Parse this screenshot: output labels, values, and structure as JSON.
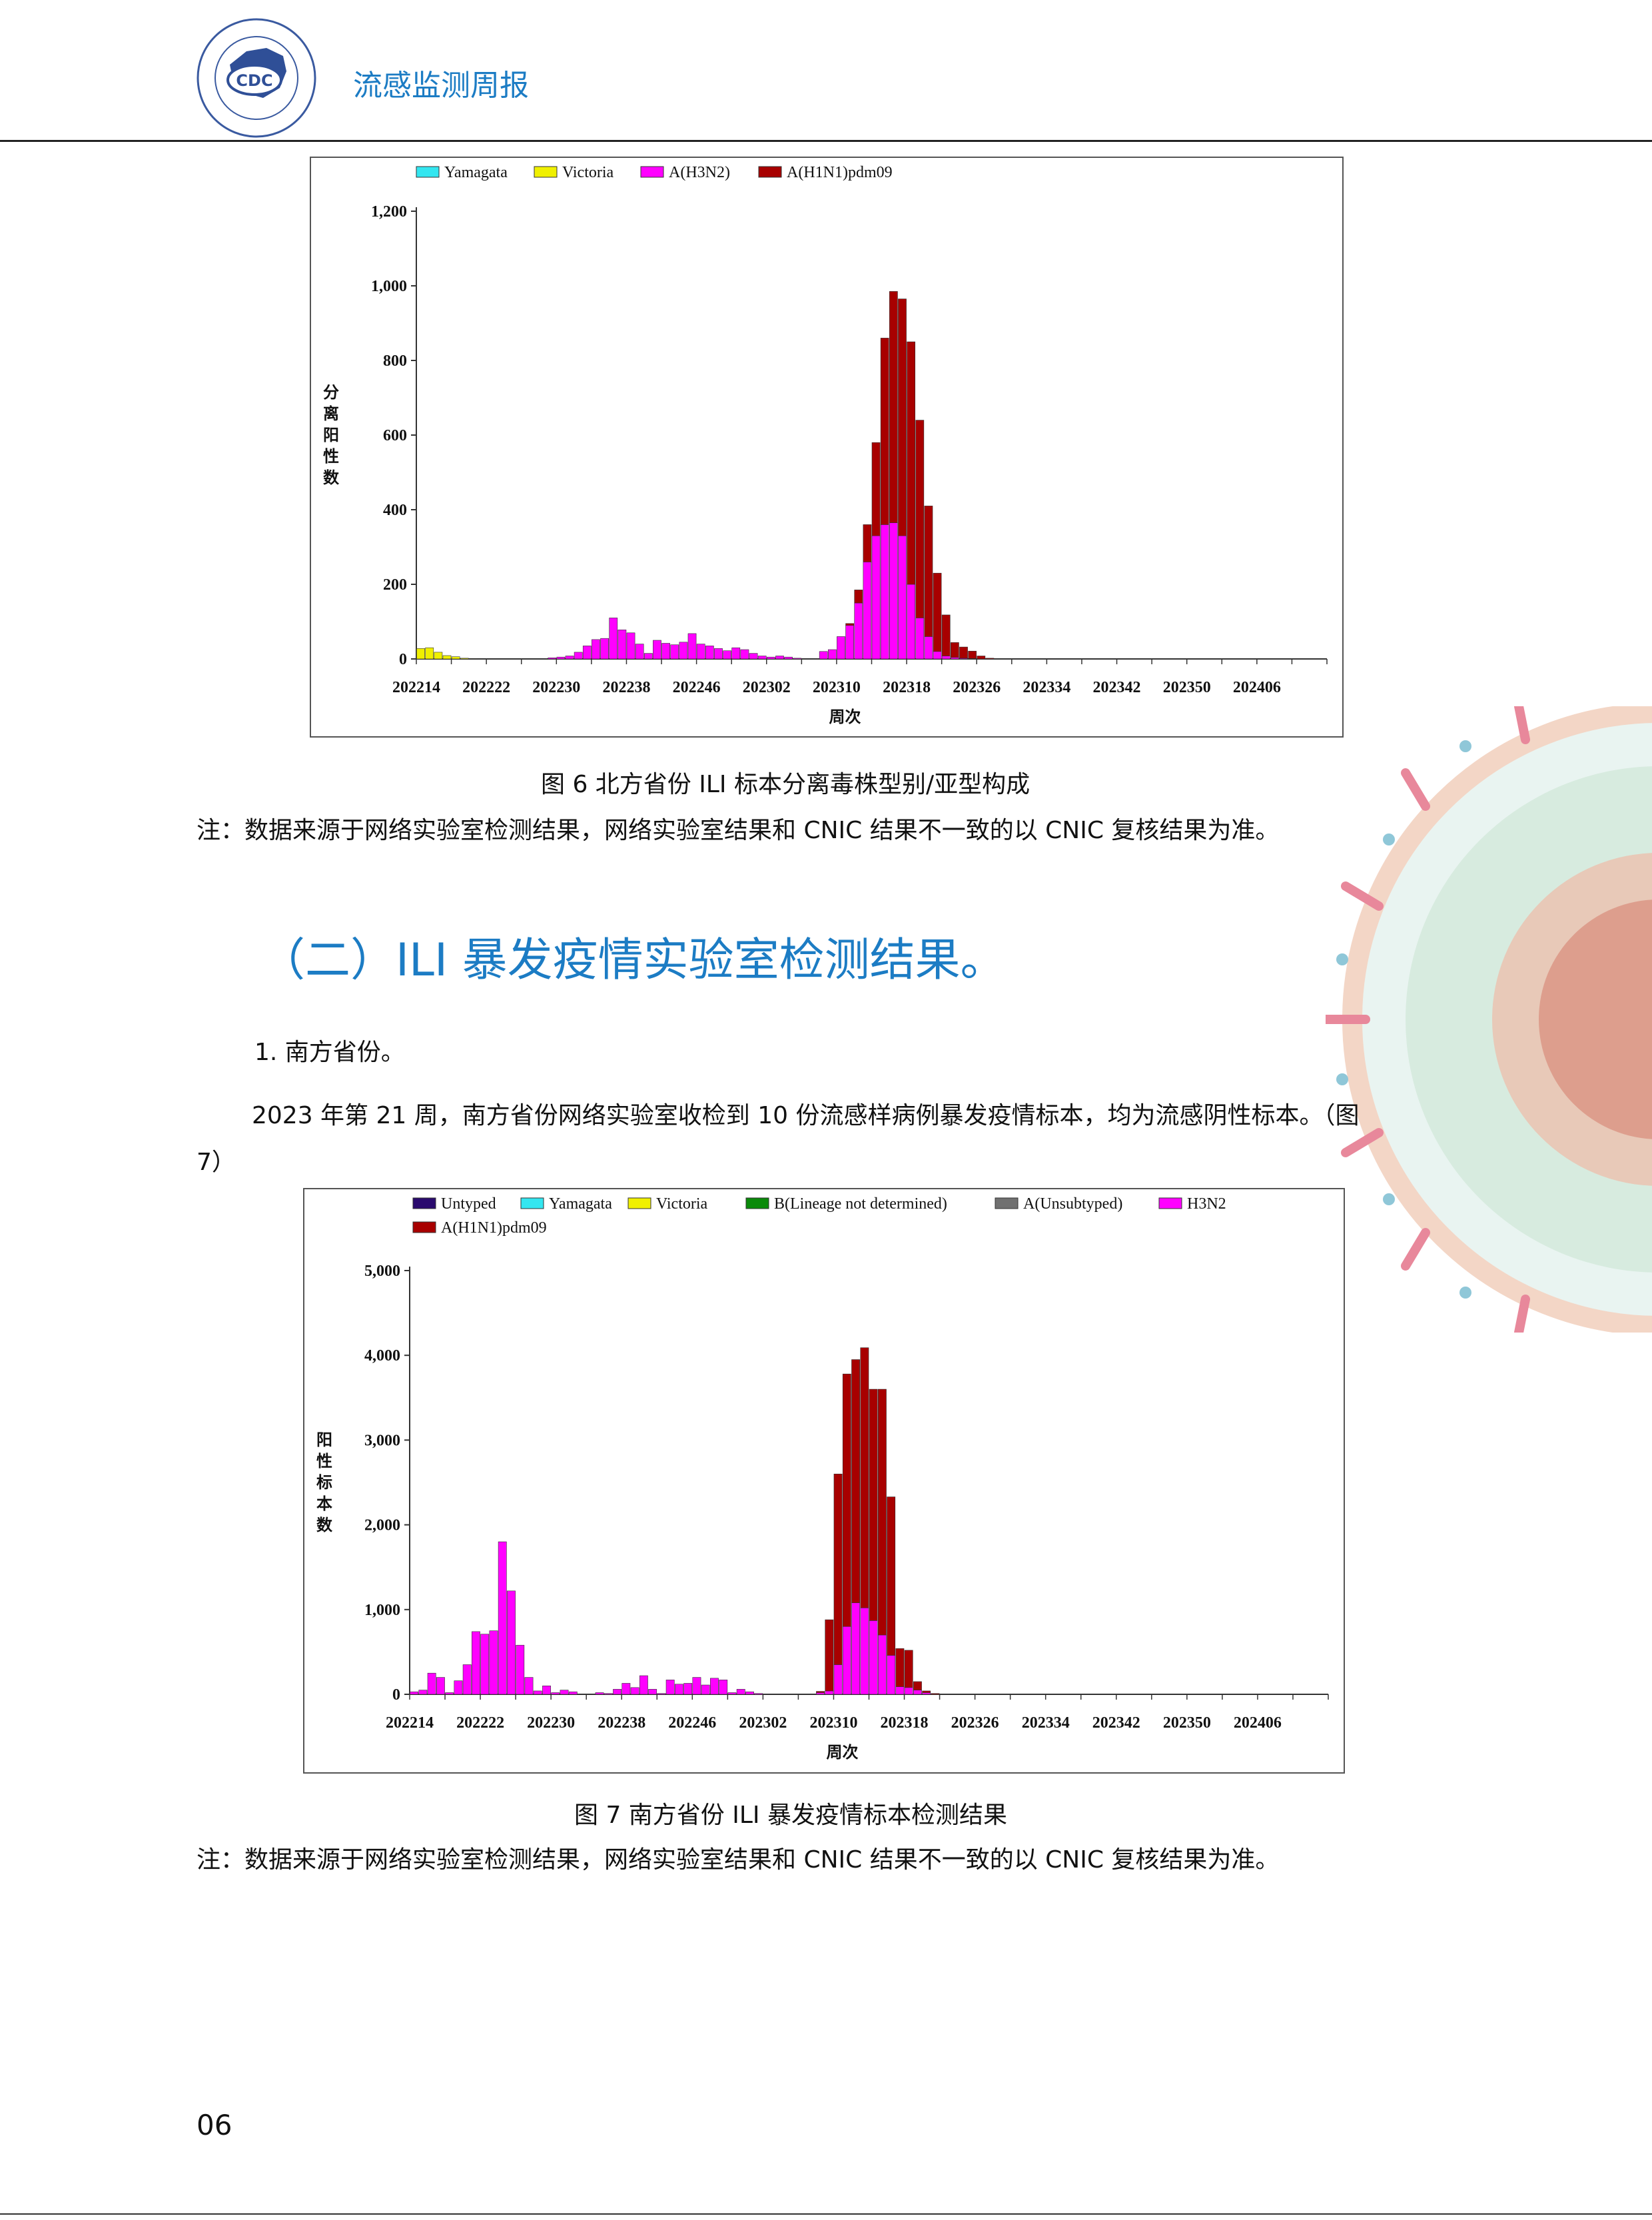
{
  "header": {
    "title": "流感监测周报"
  },
  "colors": {
    "header_blue": "#1c7cc4",
    "Untyped": "#2a0a6e",
    "Yamagata": "#33e6f0",
    "Victoria": "#f0f000",
    "B_lineage": "#0a8a0a",
    "A_unsubtyped": "#707070",
    "H3N2": "#ff00ff",
    "H1N1": "#a80000"
  },
  "figure6": {
    "caption": "图 6    北方省份 ILI 标本分离毒株型别/亚型构成",
    "note": "注：数据来源于网络实验室检测结果，网络实验室结果和 CNIC 结果不一致的以 CNIC 复核结果为准。",
    "chart_data": {
      "type": "bar",
      "stacked": true,
      "ylabel": "分离阳性数",
      "xlabel": "周次",
      "ylim": [
        0,
        1200
      ],
      "yticks": [
        "0",
        "200",
        "400",
        "600",
        "800",
        "1,000",
        "1,200"
      ],
      "ytick_values": [
        0,
        200,
        400,
        600,
        800,
        1000,
        1200
      ],
      "xticks": [
        "202214",
        "202222",
        "202230",
        "202238",
        "202246",
        "202302",
        "202310",
        "202318",
        "202326",
        "202334",
        "202342",
        "202350",
        "202406"
      ],
      "legend": [
        "Yamagata",
        "Victoria",
        "A(H3N2)",
        "A(H1N1)pdm09"
      ],
      "legend_position": "top",
      "weeks": 104,
      "series": [
        {
          "name": "Victoria",
          "color_key": "Victoria",
          "values": [
            28,
            30,
            18,
            9,
            6,
            2,
            1,
            0,
            0,
            0,
            0,
            0,
            0,
            0,
            0,
            0,
            0,
            0,
            0,
            0,
            0,
            0,
            0,
            0,
            0,
            0,
            0,
            0,
            0,
            0,
            0,
            0,
            0,
            0,
            0,
            0,
            0,
            0,
            0,
            0,
            0,
            0,
            0,
            0,
            0,
            0,
            0,
            0,
            0,
            0,
            0,
            0,
            0,
            0,
            0,
            0,
            0,
            0,
            0,
            0,
            0,
            0,
            0,
            0,
            0,
            0,
            0,
            0,
            0,
            0,
            0,
            0,
            0,
            0,
            0,
            0,
            0,
            0,
            0,
            0,
            0,
            0,
            0,
            0,
            0,
            0,
            0,
            0,
            0,
            0,
            0,
            0,
            0,
            0,
            0,
            0,
            0,
            0,
            0,
            0,
            0,
            0,
            0,
            0
          ]
        },
        {
          "name": "A(H3N2)",
          "color_key": "H3N2",
          "values": [
            0,
            0,
            0,
            0,
            0,
            0,
            0,
            0,
            0,
            0,
            0,
            0,
            0,
            0,
            1,
            3,
            5,
            8,
            18,
            35,
            52,
            55,
            110,
            78,
            70,
            40,
            15,
            50,
            42,
            38,
            45,
            68,
            40,
            35,
            28,
            22,
            30,
            25,
            15,
            8,
            5,
            8,
            5,
            2,
            0,
            0,
            20,
            25,
            60,
            90,
            150,
            260,
            330,
            360,
            365,
            330,
            200,
            110,
            60,
            20,
            8,
            4,
            2,
            1,
            0,
            0,
            0,
            0,
            0,
            0,
            0,
            0,
            0,
            0,
            0,
            0,
            0,
            0,
            0,
            0,
            0,
            0,
            0,
            0,
            0,
            0,
            0,
            0,
            0,
            0,
            0,
            0,
            0,
            0,
            0,
            0,
            0,
            0,
            0,
            0,
            0,
            0,
            0,
            0
          ]
        },
        {
          "name": "A(H1N1)pdm09",
          "color_key": "H1N1",
          "values": [
            0,
            0,
            0,
            0,
            0,
            0,
            0,
            0,
            0,
            0,
            0,
            0,
            0,
            0,
            0,
            0,
            0,
            0,
            0,
            0,
            0,
            0,
            0,
            0,
            0,
            0,
            0,
            0,
            0,
            0,
            0,
            0,
            0,
            0,
            0,
            0,
            0,
            0,
            0,
            0,
            0,
            0,
            0,
            0,
            0,
            0,
            0,
            0,
            0,
            5,
            35,
            100,
            250,
            500,
            620,
            635,
            650,
            530,
            350,
            210,
            110,
            40,
            30,
            20,
            8,
            2,
            0,
            0,
            0,
            0,
            0,
            0,
            0,
            0,
            0,
            0,
            0,
            0,
            0,
            0,
            0,
            0,
            0,
            0,
            0,
            0,
            0,
            0,
            0,
            0,
            0,
            0,
            0,
            0,
            0,
            0,
            0,
            0,
            0,
            0,
            0,
            0,
            0,
            0
          ]
        }
      ]
    }
  },
  "section2": {
    "heading": "（二）ILI 暴发疫情实验室检测结果。",
    "sub1": "1. 南方省份。",
    "para_line1": "2023 年第 21 周，南方省份网络实验室收检到 10 份流感样病例暴发疫情标本，均为流感阴性标本。（图",
    "para_line2": "7）"
  },
  "figure7": {
    "caption": "图 7    南方省份 ILI 暴发疫情标本检测结果",
    "note": "注：数据来源于网络实验室检测结果，网络实验室结果和 CNIC 结果不一致的以 CNIC 复核结果为准。",
    "chart_data": {
      "type": "bar",
      "stacked": true,
      "ylabel": "阳性标本数",
      "xlabel": "周次",
      "ylim": [
        0,
        5000
      ],
      "yticks": [
        "0",
        "1,000",
        "2,000",
        "3,000",
        "4,000",
        "5,000"
      ],
      "ytick_values": [
        0,
        1000,
        2000,
        3000,
        4000,
        5000
      ],
      "xticks": [
        "202214",
        "202222",
        "202230",
        "202238",
        "202246",
        "202302",
        "202310",
        "202318",
        "202326",
        "202334",
        "202342",
        "202350",
        "202406"
      ],
      "legend": [
        "Untyped",
        "Yamagata",
        "Victoria",
        "B(Lineage not determined)",
        "A(Unsubtyped)",
        "H3N2",
        "A(H1N1)pdm09"
      ],
      "legend_position": "top",
      "weeks": 104,
      "series": [
        {
          "name": "Victoria",
          "color_key": "Victoria",
          "values": [
            0,
            0,
            0,
            0,
            0,
            0,
            0,
            0,
            0,
            0,
            0,
            0,
            0,
            0,
            0,
            0,
            0,
            0,
            0,
            0,
            0,
            0,
            0,
            0,
            0,
            0,
            0,
            0,
            0,
            0,
            0,
            0,
            0,
            0,
            0,
            0,
            0,
            0,
            0,
            0,
            0,
            0,
            0,
            0,
            0,
            0,
            0,
            0,
            0,
            0,
            0,
            0,
            0,
            0,
            0,
            0,
            0,
            0,
            0,
            0,
            0,
            0,
            0,
            0,
            0,
            0,
            0,
            0,
            0,
            0,
            0,
            0,
            0,
            0,
            0,
            0,
            0,
            0,
            0,
            0,
            0,
            0,
            0,
            0,
            0,
            0,
            0,
            0,
            0,
            0,
            0,
            0,
            0,
            0,
            0,
            0,
            0,
            0,
            0,
            0,
            0,
            0,
            0,
            0
          ]
        },
        {
          "name": "H3N2",
          "color_key": "H3N2",
          "values": [
            30,
            50,
            250,
            200,
            20,
            160,
            350,
            740,
            710,
            750,
            1800,
            1220,
            580,
            200,
            40,
            100,
            20,
            50,
            30,
            0,
            0,
            20,
            10,
            60,
            130,
            80,
            220,
            60,
            10,
            170,
            120,
            130,
            200,
            110,
            190,
            170,
            20,
            60,
            30,
            10,
            0,
            0,
            0,
            0,
            0,
            0,
            20,
            40,
            350,
            800,
            1080,
            1020,
            870,
            700,
            460,
            90,
            80,
            50,
            20,
            0,
            0,
            0,
            0,
            0,
            0,
            0,
            0,
            0,
            0,
            0,
            0,
            0,
            0,
            0,
            0,
            0,
            0,
            0,
            0,
            0,
            0,
            0,
            0,
            0,
            0,
            0,
            0,
            0,
            0,
            0,
            0,
            0,
            0,
            0,
            0,
            0,
            0,
            0,
            0,
            0,
            0,
            0,
            0,
            0
          ]
        },
        {
          "name": "A(H1N1)pdm09",
          "color_key": "H1N1",
          "values": [
            0,
            0,
            0,
            0,
            0,
            0,
            0,
            0,
            0,
            0,
            0,
            0,
            0,
            0,
            0,
            0,
            0,
            0,
            0,
            0,
            0,
            0,
            0,
            0,
            0,
            0,
            0,
            0,
            0,
            0,
            0,
            0,
            0,
            0,
            0,
            0,
            0,
            0,
            0,
            0,
            0,
            0,
            0,
            0,
            0,
            0,
            15,
            840,
            2250,
            2980,
            2870,
            3070,
            2730,
            2900,
            1870,
            450,
            440,
            100,
            20,
            10,
            0,
            0,
            0,
            0,
            0,
            0,
            0,
            0,
            0,
            0,
            0,
            0,
            0,
            0,
            0,
            0,
            0,
            0,
            0,
            0,
            0,
            0,
            0,
            0,
            0,
            0,
            0,
            0,
            0,
            0,
            0,
            0,
            0,
            0,
            0,
            0,
            0,
            0,
            0,
            0,
            0
          ]
        }
      ]
    }
  },
  "page_number": "06"
}
